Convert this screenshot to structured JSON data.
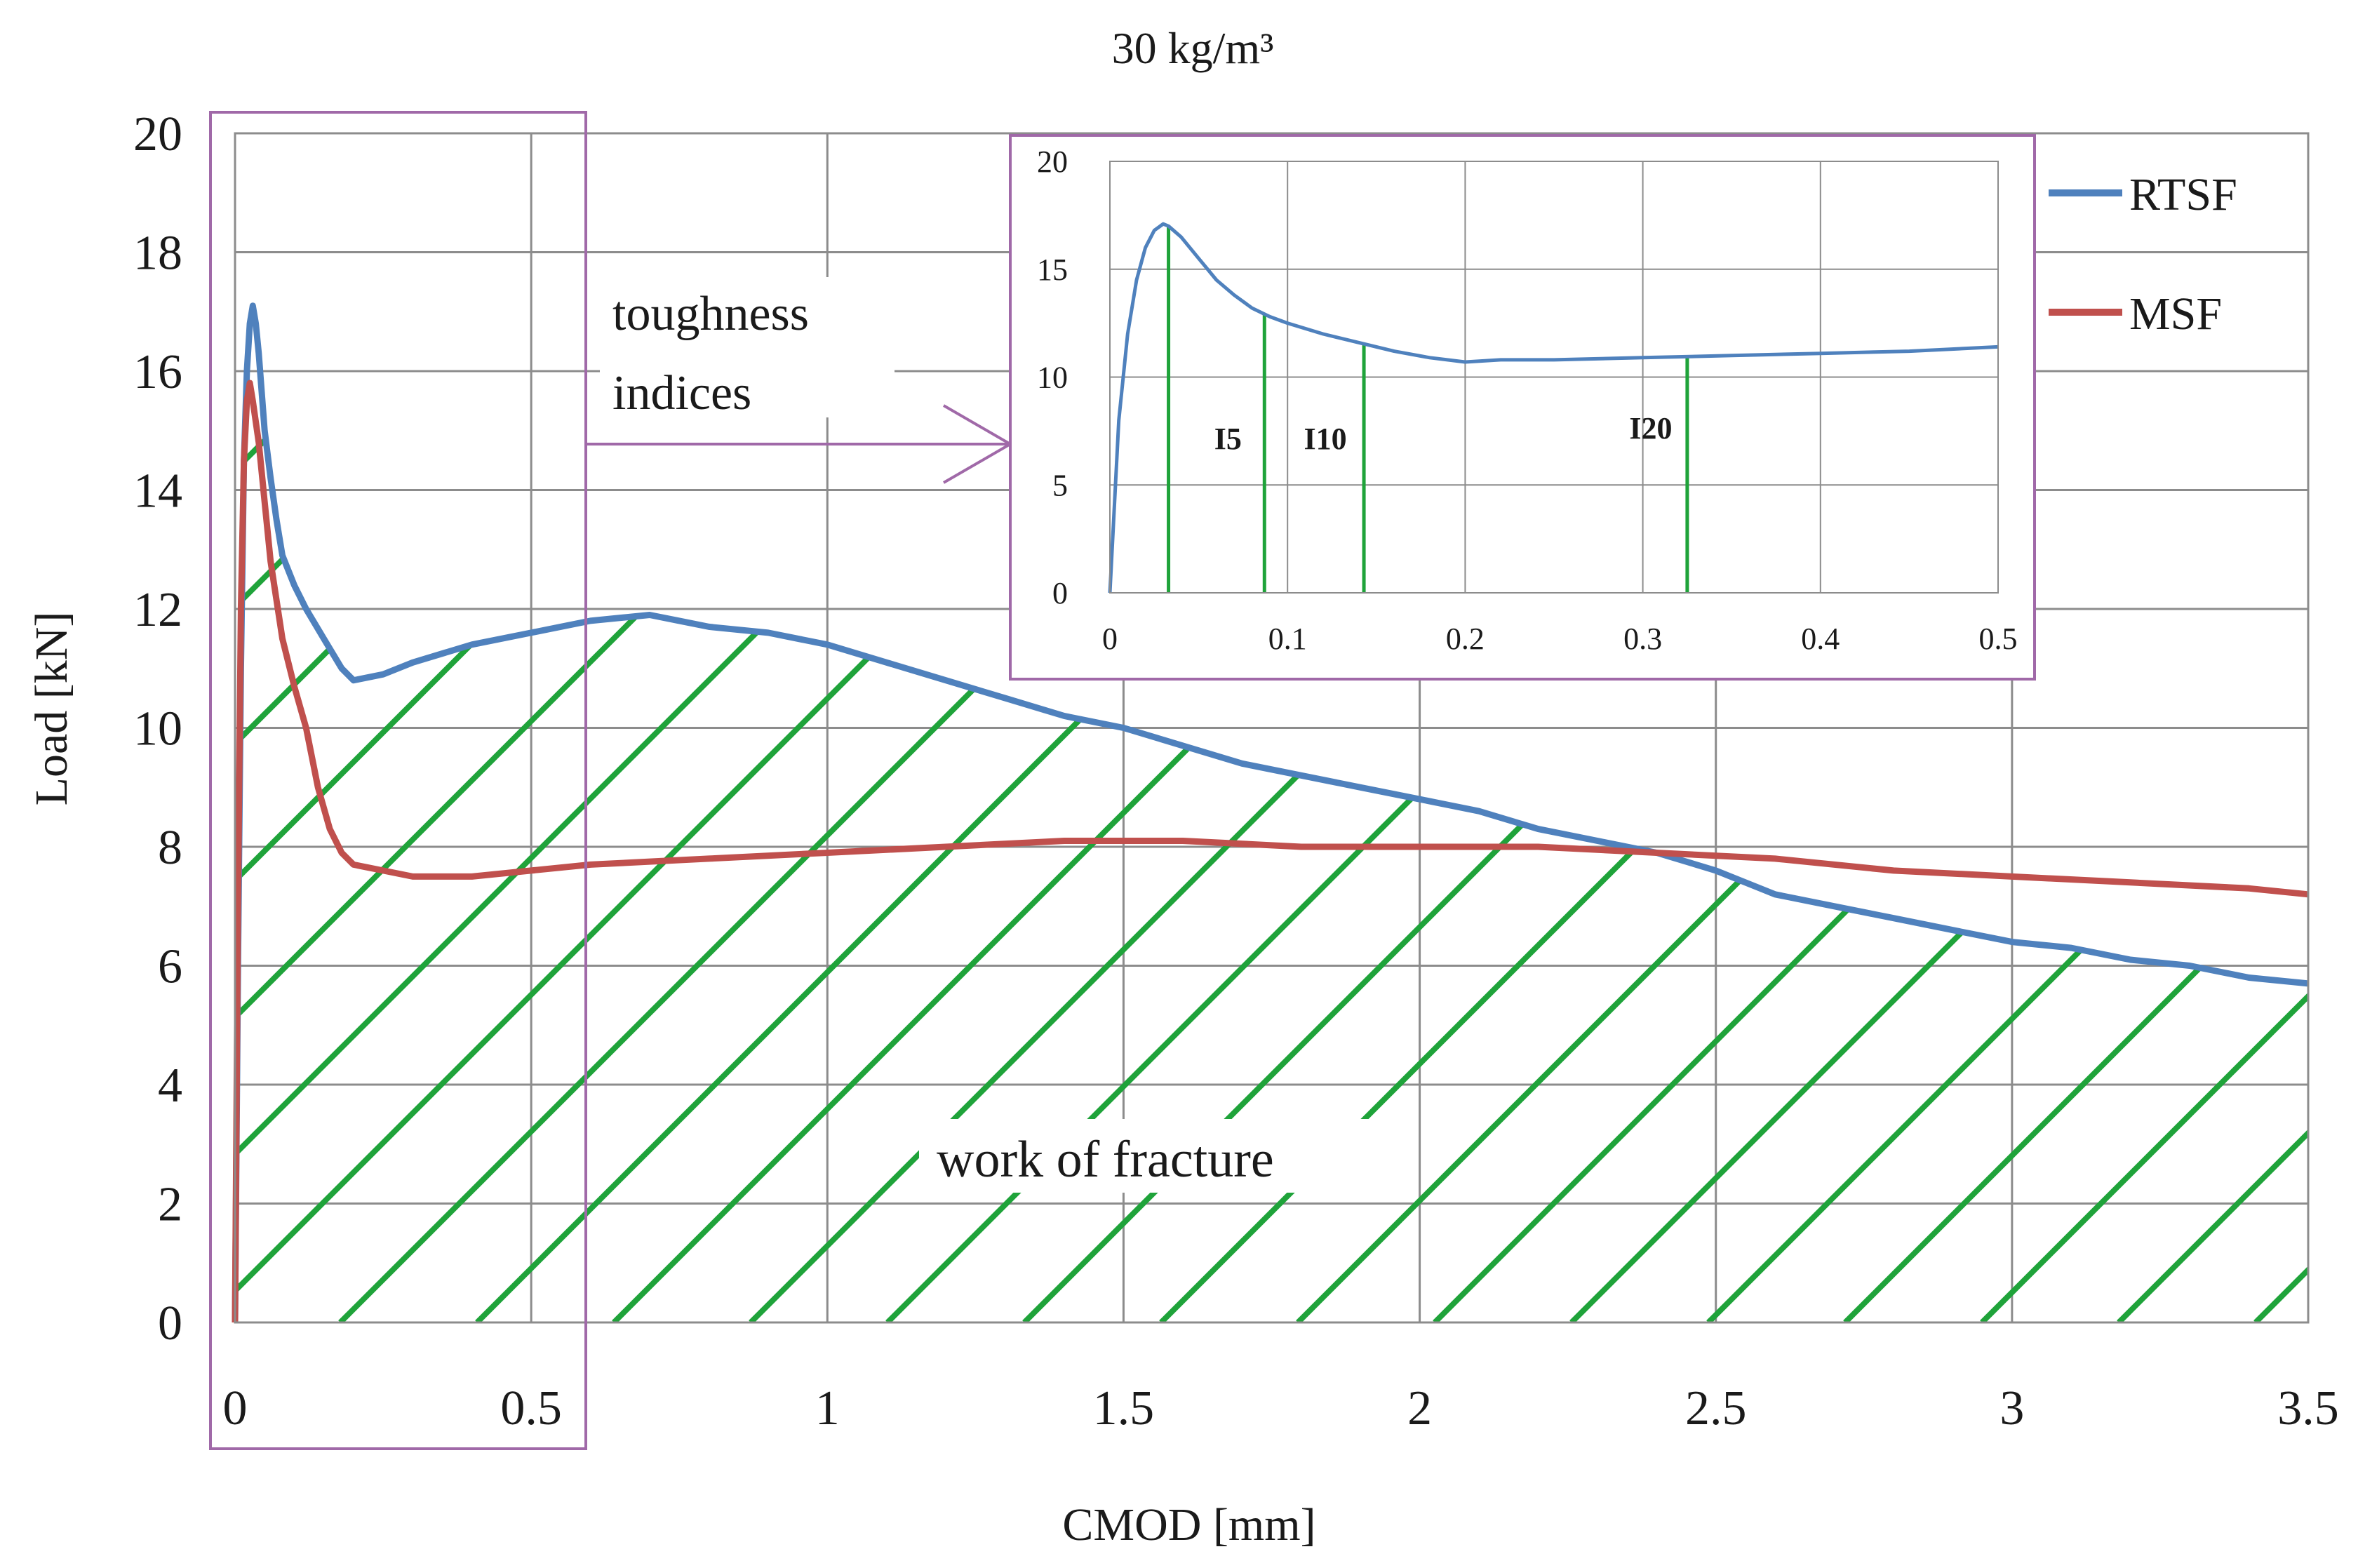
{
  "chart_data": {
    "type": "line",
    "title": "30 kg/m³",
    "xlabel": "CMOD [mm]",
    "ylabel": "Load [kN]",
    "xlim": [
      0,
      3.5
    ],
    "ylim": [
      0,
      20
    ],
    "x_ticks": [
      "0",
      "0.5",
      "1",
      "1.5",
      "2",
      "2.5",
      "3",
      "3.5"
    ],
    "y_ticks": [
      "0",
      "2",
      "4",
      "6",
      "8",
      "10",
      "12",
      "14",
      "16",
      "18",
      "20"
    ],
    "grid": true,
    "legend_position": "top-right",
    "series": [
      {
        "name": "RTSF",
        "color": "#4f81bd",
        "x": [
          0,
          0.005,
          0.01,
          0.015,
          0.02,
          0.025,
          0.03,
          0.035,
          0.04,
          0.05,
          0.06,
          0.07,
          0.08,
          0.1,
          0.12,
          0.15,
          0.18,
          0.2,
          0.25,
          0.3,
          0.4,
          0.5,
          0.6,
          0.7,
          0.75,
          0.8,
          0.9,
          1.0,
          1.1,
          1.2,
          1.3,
          1.4,
          1.5,
          1.6,
          1.7,
          1.8,
          1.9,
          2.0,
          2.1,
          2.2,
          2.3,
          2.4,
          2.5,
          2.6,
          2.7,
          2.8,
          2.9,
          3.0,
          3.1,
          3.2,
          3.3,
          3.4,
          3.5
        ],
        "y": [
          0,
          6.0,
          11.0,
          14.5,
          16.0,
          16.8,
          17.1,
          16.8,
          16.3,
          15.0,
          14.2,
          13.5,
          12.9,
          12.4,
          12.0,
          11.5,
          11.0,
          10.8,
          10.9,
          11.1,
          11.4,
          11.6,
          11.8,
          11.9,
          11.8,
          11.7,
          11.6,
          11.4,
          11.1,
          10.8,
          10.5,
          10.2,
          10.0,
          9.7,
          9.4,
          9.2,
          9.0,
          8.8,
          8.6,
          8.3,
          8.1,
          7.9,
          7.6,
          7.2,
          7.0,
          6.8,
          6.6,
          6.4,
          6.3,
          6.1,
          6.0,
          5.8,
          5.7
        ]
      },
      {
        "name": "MSF",
        "color": "#c0504d",
        "x": [
          0,
          0.005,
          0.01,
          0.015,
          0.02,
          0.025,
          0.03,
          0.04,
          0.05,
          0.06,
          0.08,
          0.1,
          0.12,
          0.14,
          0.16,
          0.18,
          0.2,
          0.25,
          0.3,
          0.4,
          0.5,
          0.6,
          0.8,
          1.0,
          1.2,
          1.4,
          1.6,
          1.8,
          2.0,
          2.2,
          2.4,
          2.6,
          2.8,
          3.0,
          3.2,
          3.4,
          3.5
        ],
        "y": [
          0,
          7.0,
          12.0,
          14.5,
          15.5,
          15.8,
          15.5,
          14.8,
          13.8,
          12.8,
          11.5,
          10.7,
          10.0,
          9.0,
          8.3,
          7.9,
          7.7,
          7.6,
          7.5,
          7.5,
          7.6,
          7.7,
          7.8,
          7.9,
          8.0,
          8.1,
          8.1,
          8.0,
          8.0,
          8.0,
          7.9,
          7.8,
          7.6,
          7.5,
          7.4,
          7.3,
          7.2
        ]
      }
    ],
    "annotations": {
      "toughness_indices": "toughness indices",
      "work_of_fracture": "work of fracture"
    },
    "inset": {
      "xlim": [
        0,
        0.5
      ],
      "ylim": [
        0,
        20
      ],
      "x_ticks": [
        "0",
        "0.1",
        "0.2",
        "0.3",
        "0.4",
        "0.5"
      ],
      "y_ticks": [
        "0",
        "5",
        "10",
        "15",
        "20"
      ],
      "markers": [
        {
          "label": "",
          "x": 0.033
        },
        {
          "label": "I5",
          "x": 0.087
        },
        {
          "label": "I10",
          "x": 0.143
        },
        {
          "label": "I20",
          "x": 0.325
        }
      ],
      "series": {
        "name": "RTSF",
        "x": [
          0,
          0.005,
          0.01,
          0.015,
          0.02,
          0.025,
          0.03,
          0.033,
          0.04,
          0.05,
          0.06,
          0.07,
          0.08,
          0.09,
          0.1,
          0.12,
          0.14,
          0.16,
          0.18,
          0.2,
          0.22,
          0.25,
          0.3,
          0.35,
          0.4,
          0.45,
          0.5
        ],
        "y": [
          0,
          8.0,
          12.0,
          14.5,
          16.0,
          16.8,
          17.1,
          17.0,
          16.5,
          15.5,
          14.5,
          13.8,
          13.2,
          12.8,
          12.5,
          12.0,
          11.6,
          11.2,
          10.9,
          10.7,
          10.8,
          10.8,
          10.9,
          11.0,
          11.1,
          11.2,
          11.4
        ]
      }
    }
  }
}
